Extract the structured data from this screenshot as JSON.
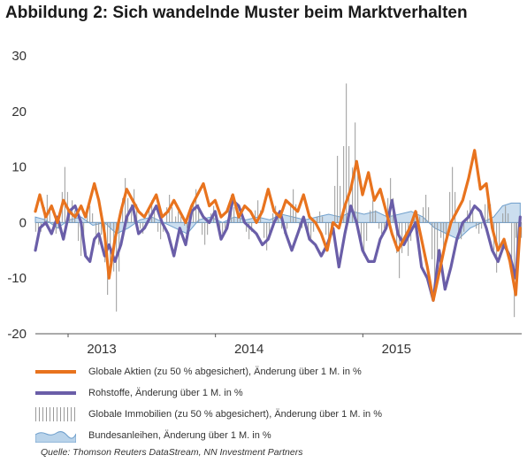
{
  "title": "Abbildung 2: Sich wandelnde Muster beim Marktverhalten",
  "source": "Quelle: Thomson Reuters DataStream, NN Investment Partners",
  "chart_data": {
    "type": "line",
    "ylim": [
      -20,
      30
    ],
    "yticks": [
      "30",
      "20",
      "10",
      "0",
      "-10",
      "-20"
    ],
    "xlim": [
      2012.55,
      2015.85
    ],
    "xticks": [
      {
        "value": 2013.0,
        "label": "2013"
      },
      {
        "value": 2014.0,
        "label": "2014"
      },
      {
        "value": 2015.0,
        "label": "2015"
      }
    ],
    "grid": false,
    "legend_position": "bottom",
    "colors": {
      "aktien": "#e8731e",
      "rohstoffe": "#6a5ea8",
      "immobilien": "#999999",
      "anleihen": "#a9c7e3"
    },
    "series": [
      {
        "key": "aktien",
        "name": "Globale Aktien (zu 50 % abgesichert), Änderung über 1 M. in %",
        "x": [
          2012.55,
          2012.58,
          2012.62,
          2012.66,
          2012.7,
          2012.74,
          2012.78,
          2012.82,
          2012.86,
          2012.89,
          2012.92,
          2012.95,
          2012.98,
          2013.02,
          2013.05,
          2013.09,
          2013.13,
          2013.17,
          2013.21,
          2013.25,
          2013.29,
          2013.33,
          2013.37,
          2013.41,
          2013.45,
          2013.49,
          2013.53,
          2013.57,
          2013.61,
          2013.65,
          2013.69,
          2013.73,
          2013.77,
          2013.81,
          2013.85,
          2013.89,
          2013.93,
          2013.97,
          2014.01,
          2014.05,
          2014.09,
          2014.13,
          2014.17,
          2014.21,
          2014.25,
          2014.29,
          2014.33,
          2014.37,
          2014.41,
          2014.45,
          2014.49,
          2014.53,
          2014.57,
          2014.61,
          2014.65,
          2014.69,
          2014.73,
          2014.77,
          2014.81,
          2014.85,
          2014.89,
          2014.93,
          2014.97,
          2015.01,
          2015.05,
          2015.09,
          2015.13,
          2015.17,
          2015.21,
          2015.25,
          2015.29,
          2015.33,
          2015.37,
          2015.41,
          2015.45,
          2015.49,
          2015.53,
          2015.57,
          2015.61,
          2015.65,
          2015.69,
          2015.73,
          2015.77,
          2015.81,
          2015.84
        ],
        "y": [
          2,
          5,
          1,
          3,
          0,
          4,
          2,
          1,
          3,
          1,
          4,
          7,
          4,
          -2,
          -10,
          -3,
          2,
          6,
          4,
          2,
          1,
          3,
          5,
          1,
          2,
          4,
          2,
          0,
          3,
          5,
          7,
          3,
          4,
          1,
          2,
          5,
          1,
          3,
          2,
          0,
          2,
          6,
          2,
          1,
          4,
          3,
          2,
          5,
          1,
          0,
          -2,
          -5,
          0,
          -1,
          3,
          6,
          11,
          5,
          9,
          4,
          6,
          2,
          -2,
          -5,
          -3,
          -1,
          2,
          -3,
          -8,
          -14,
          -9,
          -4,
          0,
          2,
          4,
          8,
          13,
          6,
          7,
          -1,
          -5,
          -3,
          -7,
          -13,
          -1
        ]
      },
      {
        "key": "rohstoffe",
        "name": "Rohstoffe, Änderung über 1 M. in %",
        "x": [
          2012.55,
          2012.58,
          2012.62,
          2012.66,
          2012.7,
          2012.74,
          2012.78,
          2012.82,
          2012.86,
          2012.89,
          2012.92,
          2012.95,
          2012.98,
          2013.02,
          2013.05,
          2013.09,
          2013.13,
          2013.17,
          2013.21,
          2013.25,
          2013.29,
          2013.33,
          2013.37,
          2013.41,
          2013.45,
          2013.49,
          2013.53,
          2013.57,
          2013.61,
          2013.65,
          2013.69,
          2013.73,
          2013.77,
          2013.81,
          2013.85,
          2013.89,
          2013.93,
          2013.97,
          2014.01,
          2014.05,
          2014.09,
          2014.13,
          2014.17,
          2014.21,
          2014.25,
          2014.29,
          2014.33,
          2014.37,
          2014.41,
          2014.45,
          2014.49,
          2014.53,
          2014.57,
          2014.61,
          2014.65,
          2014.69,
          2014.73,
          2014.77,
          2014.81,
          2014.85,
          2014.89,
          2014.93,
          2014.97,
          2015.01,
          2015.05,
          2015.09,
          2015.13,
          2015.17,
          2015.21,
          2015.25,
          2015.29,
          2015.33,
          2015.37,
          2015.41,
          2015.45,
          2015.49,
          2015.53,
          2015.57,
          2015.61,
          2015.65,
          2015.69,
          2015.73,
          2015.77,
          2015.81,
          2015.84
        ],
        "y": [
          -5,
          -1,
          0,
          -2,
          1,
          -3,
          2,
          3,
          0,
          -6,
          -7,
          -3,
          -2,
          -6,
          -4,
          -7,
          -4,
          1,
          3,
          -2,
          -1,
          1,
          3,
          0,
          -2,
          -6,
          -1,
          -4,
          2,
          3,
          1,
          0,
          2,
          -3,
          -1,
          4,
          3,
          0,
          -1,
          -2,
          -4,
          -3,
          0,
          2,
          -2,
          -5,
          -2,
          1,
          -3,
          -4,
          -6,
          -4,
          -1,
          -8,
          -2,
          3,
          0,
          -5,
          -7,
          -7,
          -3,
          -1,
          4,
          -2,
          -4,
          -2,
          0,
          -8,
          -10,
          -14,
          -5,
          -12,
          -8,
          -3,
          0,
          1,
          3,
          2,
          -1,
          -5,
          -7,
          -4,
          -6,
          -10,
          1
        ]
      },
      {
        "key": "immobilien",
        "name": "Globale Immobilien (zu 50 % abgesichert), Änderung über 1 M. in %",
        "x": [
          2012.57,
          2012.63,
          2012.69,
          2012.75,
          2012.8,
          2012.86,
          2012.92,
          2012.98,
          2013.04,
          2013.1,
          2013.16,
          2013.22,
          2013.28,
          2013.34,
          2013.4,
          2013.46,
          2013.52,
          2013.58,
          2013.64,
          2013.7,
          2013.76,
          2013.82,
          2013.88,
          2013.94,
          2014.0,
          2014.06,
          2014.12,
          2014.18,
          2014.24,
          2014.3,
          2014.36,
          2014.42,
          2014.48,
          2014.54,
          2014.6,
          2014.66,
          2014.72,
          2014.78,
          2014.84,
          2014.9,
          2014.96,
          2015.02,
          2015.08,
          2015.14,
          2015.2,
          2015.26,
          2015.32,
          2015.38,
          2015.44,
          2015.5,
          2015.56,
          2015.62,
          2015.68,
          2015.74,
          2015.8,
          2015.83
        ],
        "y": [
          -3,
          5,
          -2,
          10,
          4,
          -6,
          3,
          -4,
          -13,
          -16,
          8,
          6,
          -2,
          4,
          -3,
          5,
          2,
          -1,
          6,
          -4,
          3,
          -2,
          5,
          2,
          -3,
          4,
          -5,
          3,
          -2,
          6,
          -1,
          -3,
          2,
          -4,
          12,
          25,
          18,
          -6,
          4,
          -2,
          8,
          -10,
          -6,
          2,
          5,
          -12,
          -5,
          10,
          -3,
          4,
          -2,
          6,
          -9,
          3,
          -17,
          -5
        ]
      },
      {
        "key": "anleihen",
        "name": "Bundesanleihen, Änderung über 1 M. in %",
        "x": [
          2012.55,
          2012.62,
          2012.7,
          2012.78,
          2012.86,
          2012.94,
          2013.02,
          2013.1,
          2013.18,
          2013.26,
          2013.34,
          2013.42,
          2013.5,
          2013.58,
          2013.66,
          2013.74,
          2013.82,
          2013.9,
          2013.98,
          2014.06,
          2014.14,
          2014.22,
          2014.3,
          2014.38,
          2014.46,
          2014.54,
          2014.62,
          2014.7,
          2014.78,
          2014.86,
          2014.94,
          2015.02,
          2015.1,
          2015.18,
          2015.26,
          2015.34,
          2015.42,
          2015.5,
          2015.58,
          2015.66,
          2015.72,
          2015.78,
          2015.84
        ],
        "y": [
          1,
          0.5,
          -1,
          0.5,
          1,
          -0.5,
          0,
          -2,
          -1,
          0.5,
          1,
          0,
          -1,
          -2,
          0.5,
          1,
          0,
          1,
          0.5,
          1,
          0.5,
          1.5,
          1,
          0.5,
          1,
          1.5,
          1,
          2,
          1.5,
          2,
          1,
          1.5,
          2,
          1,
          -1,
          -2,
          -3,
          -1,
          0,
          1,
          3,
          3.5,
          3.5
        ]
      }
    ]
  }
}
